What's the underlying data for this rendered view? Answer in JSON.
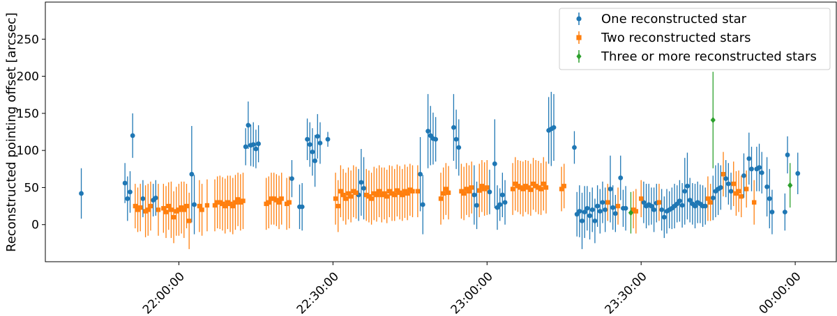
{
  "chart_data": {
    "type": "scatter",
    "title": "",
    "xlabel": "",
    "ylabel": "Reconstructed pointing offset [arcsec]",
    "xlim": [
      "21:34:00",
      "00:08:00"
    ],
    "ylim": [
      -50,
      300
    ],
    "x_ticks": [
      "22:00:00",
      "22:30:00",
      "23:00:00",
      "23:30:00",
      "00:00:00"
    ],
    "y_ticks": [
      0,
      50,
      100,
      150,
      200,
      250
    ],
    "grid": false,
    "legend_position": "top-right",
    "series": [
      {
        "name": "One reconstructed star",
        "color": "#1f77b4",
        "marker": "circle",
        "points": [
          [
            "21:41:00",
            42,
            34
          ],
          [
            "21:49:30",
            56,
            27
          ],
          [
            "21:50:00",
            35,
            30
          ],
          [
            "21:50:30",
            44,
            28
          ],
          [
            "21:51:00",
            120,
            30
          ],
          [
            "21:53:00",
            35,
            25
          ],
          [
            "21:55:00",
            33,
            22
          ],
          [
            "21:55:30",
            36,
            24
          ],
          [
            "22:02:30",
            68,
            65
          ],
          [
            "22:03:00",
            27,
            40
          ],
          [
            "22:13:00",
            105,
            25
          ],
          [
            "22:13:30",
            134,
            32
          ],
          [
            "22:14:00",
            107,
            28
          ],
          [
            "22:14:30",
            108,
            30
          ],
          [
            "22:15:00",
            102,
            26
          ],
          [
            "22:15:30",
            109,
            25
          ],
          [
            "22:22:00",
            62,
            25
          ],
          [
            "22:23:30",
            24,
            30
          ],
          [
            "22:24:00",
            24,
            32
          ],
          [
            "22:25:00",
            115,
            28
          ],
          [
            "22:25:30",
            108,
            30
          ],
          [
            "22:26:00",
            98,
            32
          ],
          [
            "22:26:30",
            86,
            35
          ],
          [
            "22:27:00",
            119,
            30
          ],
          [
            "22:27:30",
            110,
            28
          ],
          [
            "22:29:00",
            115,
            10
          ],
          [
            "22:35:00",
            40,
            35
          ],
          [
            "22:35:30",
            57,
            45
          ],
          [
            "22:36:00",
            49,
            42
          ],
          [
            "22:47:00",
            68,
            50
          ],
          [
            "22:47:30",
            27,
            40
          ],
          [
            "22:48:30",
            126,
            50
          ],
          [
            "22:49:00",
            120,
            40
          ],
          [
            "22:49:30",
            116,
            35
          ],
          [
            "22:50:00",
            115,
            30
          ],
          [
            "22:53:30",
            131,
            45
          ],
          [
            "22:54:00",
            115,
            40
          ],
          [
            "22:54:30",
            104,
            38
          ],
          [
            "22:57:30",
            40,
            40
          ],
          [
            "22:58:00",
            26,
            32
          ],
          [
            "23:00:30",
            44,
            30
          ],
          [
            "23:01:30",
            82,
            60
          ],
          [
            "23:02:00",
            23,
            30
          ],
          [
            "23:02:30",
            27,
            22
          ],
          [
            "23:03:00",
            40,
            30
          ],
          [
            "23:03:30",
            30,
            30
          ],
          [
            "23:12:00",
            127,
            45
          ],
          [
            "23:12:30",
            129,
            50
          ],
          [
            "23:13:00",
            131,
            45
          ],
          [
            "23:17:00",
            104,
            22
          ],
          [
            "23:17:30",
            14,
            30
          ],
          [
            "23:18:00",
            18,
            35
          ],
          [
            "23:18:30",
            5,
            38
          ],
          [
            "23:19:00",
            17,
            35
          ],
          [
            "23:19:30",
            22,
            30
          ],
          [
            "23:20:00",
            12,
            32
          ],
          [
            "23:20:30",
            20,
            30
          ],
          [
            "23:21:00",
            5,
            30
          ],
          [
            "23:21:30",
            25,
            28
          ],
          [
            "23:22:00",
            18,
            30
          ],
          [
            "23:22:30",
            30,
            28
          ],
          [
            "23:23:00",
            20,
            30
          ],
          [
            "23:24:00",
            48,
            45
          ],
          [
            "23:24:30",
            23,
            30
          ],
          [
            "23:25:00",
            15,
            25
          ],
          [
            "23:26:00",
            63,
            30
          ],
          [
            "23:26:30",
            22,
            25
          ],
          [
            "23:27:00",
            22,
            30
          ],
          [
            "23:30:30",
            30,
            28
          ],
          [
            "23:31:00",
            25,
            30
          ],
          [
            "23:31:30",
            27,
            28
          ],
          [
            "23:32:00",
            25,
            25
          ],
          [
            "23:32:30",
            20,
            30
          ],
          [
            "23:33:00",
            29,
            26
          ],
          [
            "23:34:00",
            20,
            28
          ],
          [
            "23:34:30",
            10,
            28
          ],
          [
            "23:35:00",
            18,
            30
          ],
          [
            "23:35:30",
            20,
            25
          ],
          [
            "23:36:00",
            22,
            28
          ],
          [
            "23:36:30",
            25,
            30
          ],
          [
            "23:37:00",
            28,
            25
          ],
          [
            "23:37:30",
            32,
            28
          ],
          [
            "23:38:00",
            26,
            30
          ],
          [
            "23:38:30",
            45,
            45
          ],
          [
            "23:39:00",
            52,
            45
          ],
          [
            "23:39:30",
            33,
            30
          ],
          [
            "23:40:00",
            28,
            28
          ],
          [
            "23:40:30",
            25,
            30
          ],
          [
            "23:41:00",
            30,
            28
          ],
          [
            "23:41:30",
            28,
            26
          ],
          [
            "23:42:00",
            25,
            28
          ],
          [
            "23:42:30",
            25,
            25
          ],
          [
            "23:44:00",
            36,
            30
          ],
          [
            "23:44:30",
            45,
            35
          ],
          [
            "23:45:00",
            48,
            35
          ],
          [
            "23:45:30",
            50,
            30
          ],
          [
            "23:46:30",
            62,
            25
          ],
          [
            "23:47:00",
            55,
            28
          ],
          [
            "23:47:30",
            45,
            25
          ],
          [
            "23:50:00",
            66,
            30
          ],
          [
            "23:51:00",
            89,
            35
          ],
          [
            "23:51:30",
            75,
            30
          ],
          [
            "23:52:30",
            75,
            30
          ],
          [
            "23:53:00",
            77,
            32
          ],
          [
            "23:53:30",
            70,
            28
          ],
          [
            "23:54:30",
            51,
            40
          ],
          [
            "23:55:00",
            35,
            40
          ],
          [
            "23:55:30",
            17,
            30
          ],
          [
            "23:58:00",
            17,
            25
          ],
          [
            "23:58:30",
            94,
            25
          ],
          [
            "00:00:30",
            69,
            28
          ]
        ]
      },
      {
        "name": "Two reconstructed stars",
        "color": "#ff7f0e",
        "marker": "square",
        "points": [
          [
            "21:51:30",
            25,
            30
          ],
          [
            "21:52:00",
            20,
            30
          ],
          [
            "21:52:30",
            23,
            32
          ],
          [
            "21:53:30",
            18,
            35
          ],
          [
            "21:54:00",
            20,
            35
          ],
          [
            "21:54:30",
            25,
            33
          ],
          [
            "21:56:00",
            20,
            35
          ],
          [
            "21:57:00",
            22,
            33
          ],
          [
            "21:57:30",
            17,
            35
          ],
          [
            "21:58:00",
            25,
            32
          ],
          [
            "21:58:30",
            20,
            38
          ],
          [
            "21:59:00",
            10,
            35
          ],
          [
            "21:59:30",
            18,
            33
          ],
          [
            "22:00:00",
            20,
            35
          ],
          [
            "22:00:30",
            23,
            35
          ],
          [
            "22:01:00",
            20,
            38
          ],
          [
            "22:01:30",
            25,
            30
          ],
          [
            "22:02:00",
            5,
            38
          ],
          [
            "22:04:00",
            25,
            35
          ],
          [
            "22:04:30",
            20,
            35
          ],
          [
            "22:05:30",
            26,
            35
          ],
          [
            "22:07:00",
            26,
            35
          ],
          [
            "22:07:30",
            30,
            35
          ],
          [
            "22:08:00",
            30,
            36
          ],
          [
            "22:08:30",
            28,
            36
          ],
          [
            "22:09:00",
            25,
            37
          ],
          [
            "22:09:30",
            30,
            36
          ],
          [
            "22:10:00",
            28,
            38
          ],
          [
            "22:10:30",
            25,
            38
          ],
          [
            "22:11:00",
            30,
            37
          ],
          [
            "22:11:30",
            34,
            36
          ],
          [
            "22:12:00",
            30,
            38
          ],
          [
            "22:12:30",
            32,
            38
          ],
          [
            "22:17:00",
            28,
            35
          ],
          [
            "22:17:30",
            30,
            35
          ],
          [
            "22:18:00",
            35,
            35
          ],
          [
            "22:18:30",
            35,
            35
          ],
          [
            "22:19:00",
            33,
            35
          ],
          [
            "22:19:30",
            30,
            36
          ],
          [
            "22:20:00",
            35,
            35
          ],
          [
            "22:21:00",
            28,
            35
          ],
          [
            "22:21:30",
            30,
            35
          ],
          [
            "22:30:30",
            35,
            35
          ],
          [
            "22:31:00",
            25,
            35
          ],
          [
            "22:31:30",
            45,
            35
          ],
          [
            "22:32:00",
            40,
            35
          ],
          [
            "22:32:30",
            35,
            35
          ],
          [
            "22:33:00",
            42,
            35
          ],
          [
            "22:33:30",
            38,
            35
          ],
          [
            "22:34:00",
            45,
            35
          ],
          [
            "22:34:30",
            43,
            35
          ],
          [
            "22:36:30",
            40,
            35
          ],
          [
            "22:37:00",
            38,
            35
          ],
          [
            "22:37:30",
            35,
            35
          ],
          [
            "22:38:00",
            42,
            36
          ],
          [
            "22:38:30",
            40,
            36
          ],
          [
            "22:39:00",
            45,
            35
          ],
          [
            "22:39:30",
            40,
            37
          ],
          [
            "22:40:00",
            42,
            35
          ],
          [
            "22:40:30",
            38,
            36
          ],
          [
            "22:41:00",
            45,
            35
          ],
          [
            "22:41:30",
            42,
            37
          ],
          [
            "22:42:00",
            40,
            35
          ],
          [
            "22:42:30",
            46,
            35
          ],
          [
            "22:43:00",
            43,
            36
          ],
          [
            "22:43:30",
            40,
            35
          ],
          [
            "22:44:00",
            45,
            36
          ],
          [
            "22:44:30",
            42,
            36
          ],
          [
            "22:45:00",
            47,
            35
          ],
          [
            "22:45:30",
            45,
            35
          ],
          [
            "22:46:30",
            45,
            35
          ],
          [
            "22:51:00",
            35,
            35
          ],
          [
            "22:51:30",
            42,
            35
          ],
          [
            "22:52:00",
            48,
            35
          ],
          [
            "22:52:30",
            43,
            36
          ],
          [
            "22:55:00",
            45,
            37
          ],
          [
            "22:55:30",
            42,
            36
          ],
          [
            "22:56:00",
            48,
            35
          ],
          [
            "22:56:30",
            45,
            35
          ],
          [
            "22:57:00",
            50,
            35
          ],
          [
            "22:58:30",
            46,
            36
          ],
          [
            "22:59:00",
            52,
            35
          ],
          [
            "22:59:30",
            48,
            36
          ],
          [
            "23:00:00",
            50,
            37
          ],
          [
            "23:05:00",
            48,
            35
          ],
          [
            "23:05:30",
            55,
            36
          ],
          [
            "23:06:00",
            52,
            35
          ],
          [
            "23:06:30",
            50,
            36
          ],
          [
            "23:07:00",
            48,
            37
          ],
          [
            "23:07:30",
            52,
            35
          ],
          [
            "23:08:00",
            50,
            36
          ],
          [
            "23:08:30",
            47,
            35
          ],
          [
            "23:09:00",
            55,
            35
          ],
          [
            "23:09:30",
            52,
            35
          ],
          [
            "23:10:00",
            50,
            36
          ],
          [
            "23:10:30",
            48,
            35
          ],
          [
            "23:11:00",
            55,
            36
          ],
          [
            "23:11:30",
            50,
            35
          ],
          [
            "23:14:30",
            48,
            30
          ],
          [
            "23:15:00",
            52,
            30
          ],
          [
            "23:23:30",
            30,
            25
          ],
          [
            "23:25:30",
            25,
            25
          ],
          [
            "23:28:30",
            20,
            25
          ],
          [
            "23:29:00",
            18,
            30
          ],
          [
            "23:30:00",
            35,
            25
          ],
          [
            "23:33:30",
            30,
            25
          ],
          [
            "23:43:00",
            35,
            30
          ],
          [
            "23:43:30",
            30,
            25
          ],
          [
            "23:46:00",
            68,
            30
          ],
          [
            "23:48:00",
            55,
            30
          ],
          [
            "23:48:30",
            42,
            30
          ],
          [
            "23:49:00",
            45,
            28
          ],
          [
            "23:49:30",
            38,
            28
          ],
          [
            "23:50:30",
            48,
            25
          ],
          [
            "23:52:00",
            30,
            30
          ]
        ]
      },
      {
        "name": "Three or more reconstructed stars",
        "color": "#2ca02c",
        "marker": "diamond",
        "points": [
          [
            "23:28:00",
            16,
            28
          ],
          [
            "23:44:00",
            141,
            65
          ],
          [
            "23:59:00",
            53,
            30
          ]
        ]
      }
    ]
  }
}
